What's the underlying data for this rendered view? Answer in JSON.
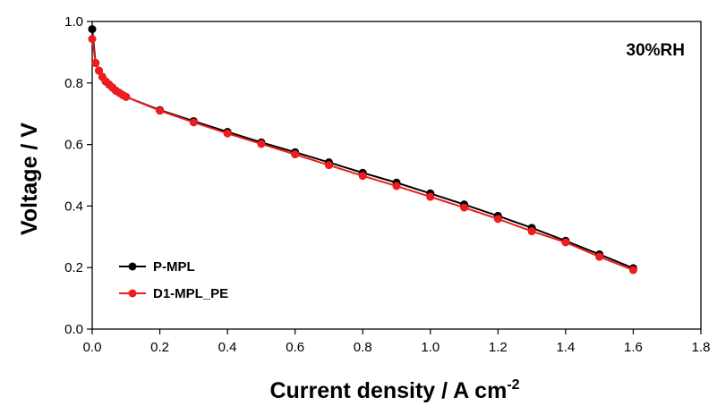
{
  "chart_data": {
    "type": "line",
    "xlabel": "Current density / A cm",
    "xlabel_sup": "-2",
    "ylabel": "Voltage / V",
    "annotation": "30%RH",
    "xlim": [
      0,
      1.8
    ],
    "ylim": [
      0,
      1.0
    ],
    "xticks": [
      "0.0",
      "0.2",
      "0.4",
      "0.6",
      "0.8",
      "1.0",
      "1.2",
      "1.4",
      "1.6",
      "1.8"
    ],
    "yticks": [
      "0.0",
      "0.2",
      "0.4",
      "0.6",
      "0.8",
      "1.0"
    ],
    "grid": false,
    "legend_position": "bottom-left",
    "series": [
      {
        "name": "P-MPL",
        "color": "#000000",
        "x": [
          0.0,
          0.01,
          0.02,
          0.03,
          0.04,
          0.05,
          0.06,
          0.07,
          0.08,
          0.09,
          0.1,
          0.2,
          0.3,
          0.4,
          0.5,
          0.6,
          0.7,
          0.8,
          0.9,
          1.0,
          1.1,
          1.2,
          1.3,
          1.4,
          1.5,
          1.6
        ],
        "y": [
          0.975,
          0.865,
          0.84,
          0.82,
          0.805,
          0.795,
          0.785,
          0.775,
          0.768,
          0.761,
          0.755,
          0.712,
          0.676,
          0.641,
          0.607,
          0.575,
          0.542,
          0.508,
          0.476,
          0.441,
          0.405,
          0.368,
          0.329,
          0.287,
          0.243,
          0.198
        ]
      },
      {
        "name": "D1-MPL_PE",
        "color": "#ee1c1c",
        "x": [
          0.0,
          0.01,
          0.02,
          0.03,
          0.04,
          0.05,
          0.06,
          0.07,
          0.08,
          0.09,
          0.1,
          0.2,
          0.3,
          0.4,
          0.5,
          0.6,
          0.7,
          0.8,
          0.9,
          1.0,
          1.1,
          1.2,
          1.3,
          1.4,
          1.5,
          1.6
        ],
        "y": [
          0.943,
          0.865,
          0.84,
          0.82,
          0.805,
          0.795,
          0.785,
          0.775,
          0.768,
          0.761,
          0.755,
          0.71,
          0.672,
          0.636,
          0.602,
          0.568,
          0.533,
          0.498,
          0.465,
          0.43,
          0.395,
          0.358,
          0.318,
          0.282,
          0.235,
          0.192
        ]
      }
    ]
  }
}
